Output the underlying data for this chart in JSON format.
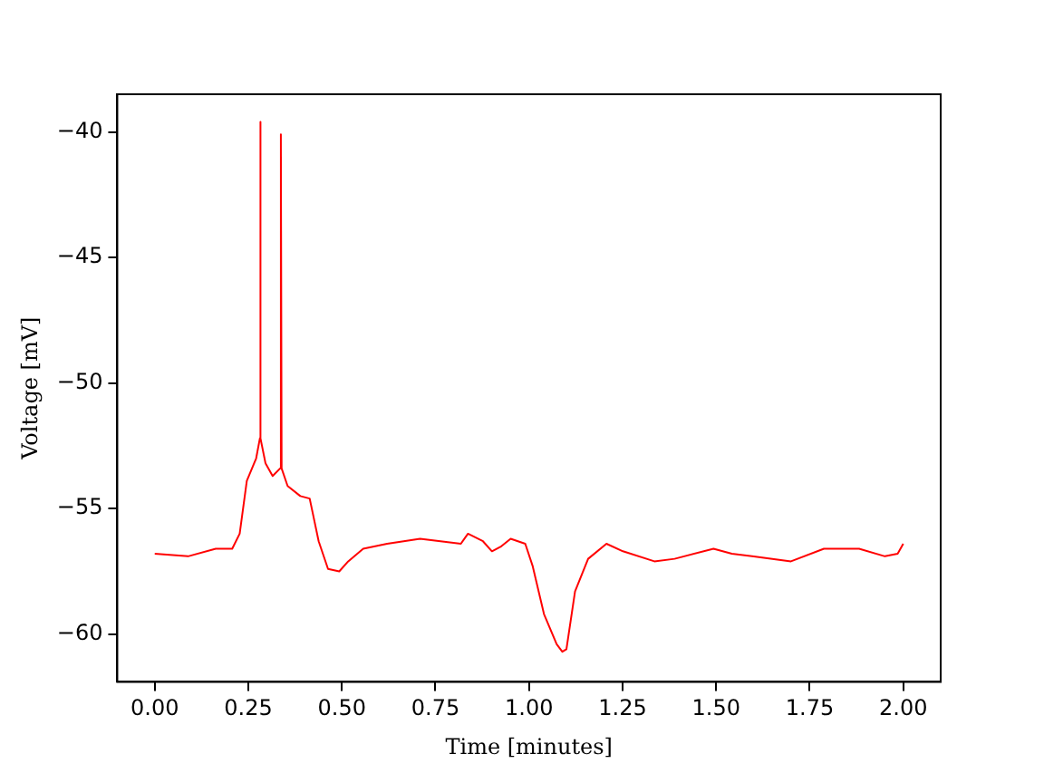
{
  "chart_data": {
    "type": "line",
    "xlabel": "Time [minutes]",
    "ylabel": "Voltage [mV]",
    "xlim": [
      -0.1,
      2.1
    ],
    "ylim": [
      -61.9,
      -38.5
    ],
    "xticks": [
      {
        "value": 0,
        "label": "0.00"
      },
      {
        "value": 0.25,
        "label": "0.25"
      },
      {
        "value": 0.5,
        "label": "0.50"
      },
      {
        "value": 0.75,
        "label": "0.75"
      },
      {
        "value": 1,
        "label": "1.00"
      },
      {
        "value": 1.25,
        "label": "1.25"
      },
      {
        "value": 1.5,
        "label": "1.50"
      },
      {
        "value": 1.75,
        "label": "1.75"
      },
      {
        "value": 2,
        "label": "2.00"
      }
    ],
    "yticks": [
      {
        "value": -60,
        "label": "−60"
      },
      {
        "value": -55,
        "label": "−55"
      },
      {
        "value": -50,
        "label": "−50"
      },
      {
        "value": -45,
        "label": "−45"
      },
      {
        "value": -40,
        "label": "−40"
      }
    ],
    "grid": false,
    "legend": false,
    "marker": "none",
    "line_style": "solid",
    "series": [
      {
        "color": "#ff0000",
        "x": [
          0,
          0.089,
          0.163,
          0.207,
          0.227,
          0.246,
          0.271,
          0.281,
          0.282,
          0.283,
          0.296,
          0.315,
          0.335,
          0.337,
          0.339,
          0.355,
          0.389,
          0.414,
          0.438,
          0.463,
          0.493,
          0.517,
          0.557,
          0.621,
          0.709,
          0.818,
          0.837,
          0.877,
          0.901,
          0.926,
          0.951,
          0.99,
          1.01,
          1.04,
          1.074,
          1.089,
          1.1,
          1.123,
          1.158,
          1.207,
          1.251,
          1.335,
          1.389,
          1.493,
          1.542,
          1.596,
          1.7,
          1.788,
          1.882,
          1.951,
          1.985,
          2.0
        ],
        "values": [
          -56.8,
          -56.9,
          -56.6,
          -56.6,
          -56,
          -53.9,
          -53,
          -52.2,
          -39.6,
          -52.2,
          -53.2,
          -53.7,
          -53.4,
          -40.1,
          -53.4,
          -54.1,
          -54.5,
          -54.6,
          -56.3,
          -57.4,
          -57.5,
          -57.1,
          -56.6,
          -56.4,
          -56.2,
          -56.4,
          -56,
          -56.3,
          -56.7,
          -56.5,
          -56.2,
          -56.4,
          -57.3,
          -59.2,
          -60.4,
          -60.7,
          -60.6,
          -58.3,
          -57,
          -56.4,
          -56.7,
          -57.1,
          -57,
          -56.6,
          -56.8,
          -56.9,
          -57.1,
          -56.6,
          -56.6,
          -56.9,
          -56.8,
          -56.4
        ]
      }
    ]
  }
}
